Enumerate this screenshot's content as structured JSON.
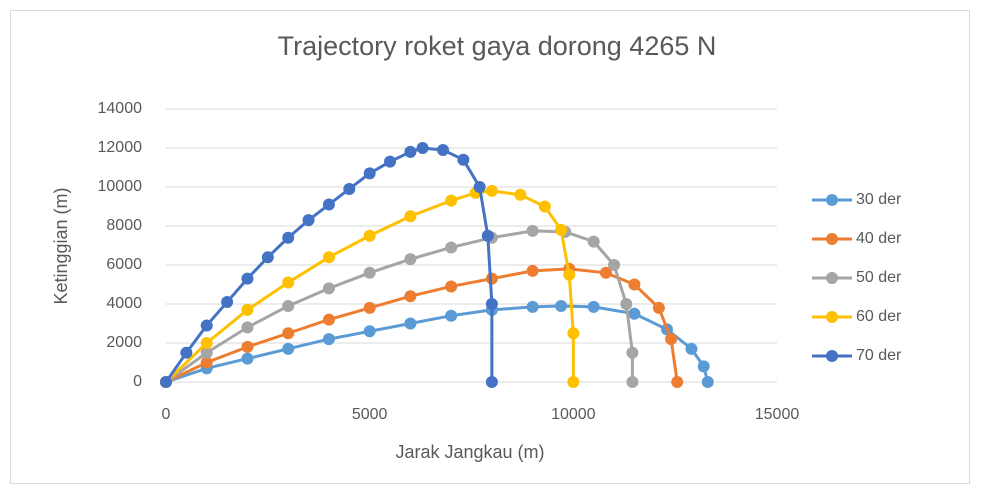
{
  "chart_data": {
    "type": "scatter",
    "title": "Trajectory roket gaya dorong 4265 N",
    "x_label": "Jarak Jangkau (m)",
    "y_label": "Ketinggian (m)",
    "xlim": [
      0,
      15000
    ],
    "xticks": [
      0,
      5000,
      10000,
      15000
    ],
    "ylim": [
      0,
      14000
    ],
    "yticks": [
      0,
      2000,
      4000,
      6000,
      8000,
      10000,
      12000,
      14000
    ],
    "grid": true,
    "legend": "right",
    "series": [
      {
        "name": "30 der",
        "color": "#5b9bd5",
        "x": [
          0,
          1000,
          2000,
          3000,
          4000,
          5000,
          6000,
          7000,
          8000,
          9000,
          9700,
          10500,
          11500,
          12300,
          12900,
          13200,
          13300
        ],
        "values": [
          0,
          700,
          1200,
          1700,
          2200,
          2600,
          3000,
          3400,
          3700,
          3850,
          3900,
          3850,
          3500,
          2700,
          1700,
          800,
          0
        ]
      },
      {
        "name": "40 der",
        "color": "#ed7d31",
        "x": [
          0,
          1000,
          2000,
          3000,
          4000,
          5000,
          6000,
          7000,
          8000,
          9000,
          9900,
          10800,
          11500,
          12100,
          12400,
          12550
        ],
        "values": [
          0,
          1000,
          1800,
          2500,
          3200,
          3800,
          4400,
          4900,
          5300,
          5700,
          5800,
          5600,
          5000,
          3800,
          2200,
          0
        ]
      },
      {
        "name": "50 der",
        "color": "#a5a5a5",
        "x": [
          0,
          1000,
          2000,
          3000,
          4000,
          5000,
          6000,
          7000,
          8000,
          9000,
          9800,
          10500,
          11000,
          11300,
          11450,
          11450
        ],
        "values": [
          0,
          1500,
          2800,
          3900,
          4800,
          5600,
          6300,
          6900,
          7400,
          7750,
          7700,
          7200,
          6000,
          4000,
          1500,
          0
        ]
      },
      {
        "name": "60 der",
        "color": "#ffc000",
        "x": [
          0,
          1000,
          2000,
          3000,
          4000,
          5000,
          6000,
          7000,
          7600,
          8000,
          8700,
          9300,
          9700,
          9900,
          10000,
          10000
        ],
        "values": [
          0,
          2000,
          3700,
          5100,
          6400,
          7500,
          8500,
          9300,
          9700,
          9800,
          9600,
          9000,
          7800,
          5500,
          2500,
          0
        ]
      },
      {
        "name": "70 der",
        "color": "#4472c4",
        "x": [
          0,
          500,
          1000,
          1500,
          2000,
          2500,
          3000,
          3500,
          4000,
          4500,
          5000,
          5500,
          6000,
          6300,
          6800,
          7300,
          7700,
          7900,
          8000,
          8000
        ],
        "values": [
          0,
          1500,
          2900,
          4100,
          5300,
          6400,
          7400,
          8300,
          9100,
          9900,
          10700,
          11300,
          11800,
          12000,
          11900,
          11400,
          10000,
          7500,
          4000,
          0
        ]
      }
    ]
  }
}
